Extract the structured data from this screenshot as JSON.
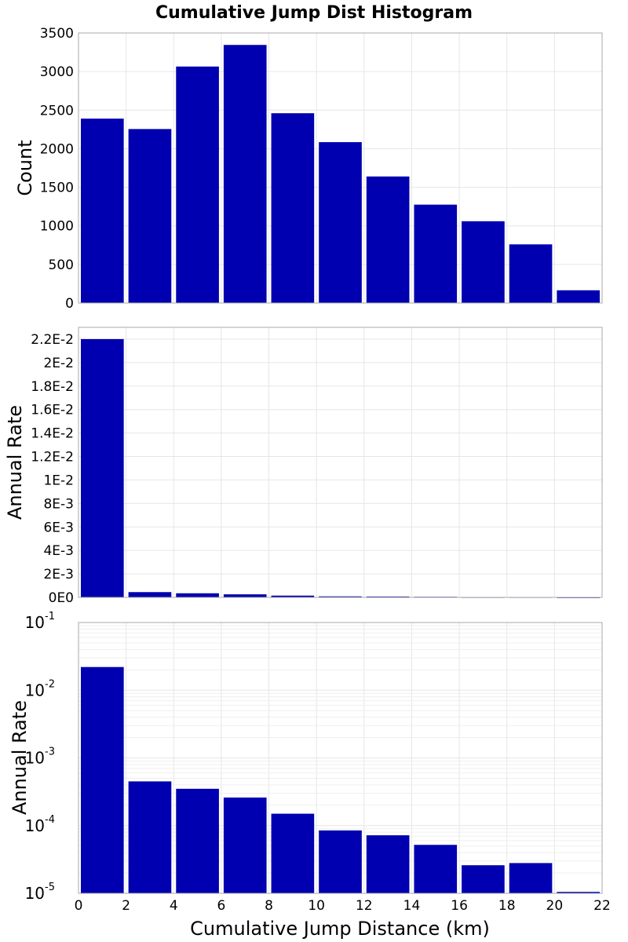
{
  "figure_title": "Cumulative Jump Dist Histogram",
  "colors": {
    "bar": "#0000b0",
    "frame": "#a8a8a8",
    "grid": "#e6e6e6"
  },
  "chart_data": [
    {
      "type": "bar",
      "title": "Cumulative Jump Dist Histogram",
      "ylabel": "Count",
      "xlabel": "",
      "bin_width": 2,
      "x": [
        1,
        3,
        5,
        7,
        9,
        11,
        13,
        15,
        17,
        19,
        21
      ],
      "values": [
        2390,
        2255,
        3065,
        3345,
        2460,
        2085,
        1640,
        1275,
        1060,
        760,
        165
      ],
      "ylim": [
        0,
        3500
      ],
      "yticks": [
        0,
        500,
        1000,
        1500,
        2000,
        2500,
        3000,
        3500
      ],
      "ytick_labels": [
        "0",
        "500",
        "1000",
        "1500",
        "2000",
        "2500",
        "3000",
        "3500"
      ],
      "xlim": [
        0,
        22
      ],
      "grid": true,
      "scale": "linear"
    },
    {
      "type": "bar",
      "ylabel": "Annual Rate",
      "xlabel": "",
      "bin_width": 2,
      "x": [
        1,
        3,
        5,
        7,
        9,
        11,
        13,
        15,
        17,
        19,
        21
      ],
      "values": [
        0.022,
        0.00045,
        0.00035,
        0.00026,
        0.00015,
        8.5e-05,
        7.2e-05,
        5.2e-05,
        2.6e-05,
        2.8e-05,
        1.05e-05
      ],
      "ylim": [
        0,
        0.023
      ],
      "yticks": [
        0,
        0.002,
        0.004,
        0.006,
        0.008,
        0.01,
        0.012,
        0.014,
        0.016,
        0.018,
        0.02,
        0.022
      ],
      "ytick_labels": [
        "0E0",
        "2E-3",
        "4E-3",
        "6E-3",
        "8E-3",
        "1E-2",
        "1.2E-2",
        "1.4E-2",
        "1.6E-2",
        "1.8E-2",
        "2E-2",
        "2.2E-2"
      ],
      "xlim": [
        0,
        22
      ],
      "grid": true,
      "scale": "linear"
    },
    {
      "type": "bar",
      "ylabel": "Annual Rate",
      "xlabel": "Cumulative Jump Distance (km)",
      "bin_width": 2,
      "x": [
        1,
        3,
        5,
        7,
        9,
        11,
        13,
        15,
        17,
        19,
        21
      ],
      "values": [
        0.022,
        0.00045,
        0.00035,
        0.00026,
        0.00015,
        8.5e-05,
        7.2e-05,
        5.2e-05,
        2.6e-05,
        2.8e-05,
        1.05e-05
      ],
      "ylim": [
        1e-05,
        0.1
      ],
      "ytick_exponents": [
        "-5",
        "-4",
        "-3",
        "-2",
        "-1"
      ],
      "ytick_base": "10",
      "xlim": [
        0,
        22
      ],
      "xticks": [
        0,
        2,
        4,
        6,
        8,
        10,
        12,
        14,
        16,
        18,
        20,
        22
      ],
      "xtick_labels": [
        "0",
        "2",
        "4",
        "6",
        "8",
        "10",
        "12",
        "14",
        "16",
        "18",
        "20",
        "22"
      ],
      "grid": true,
      "scale": "log"
    }
  ]
}
